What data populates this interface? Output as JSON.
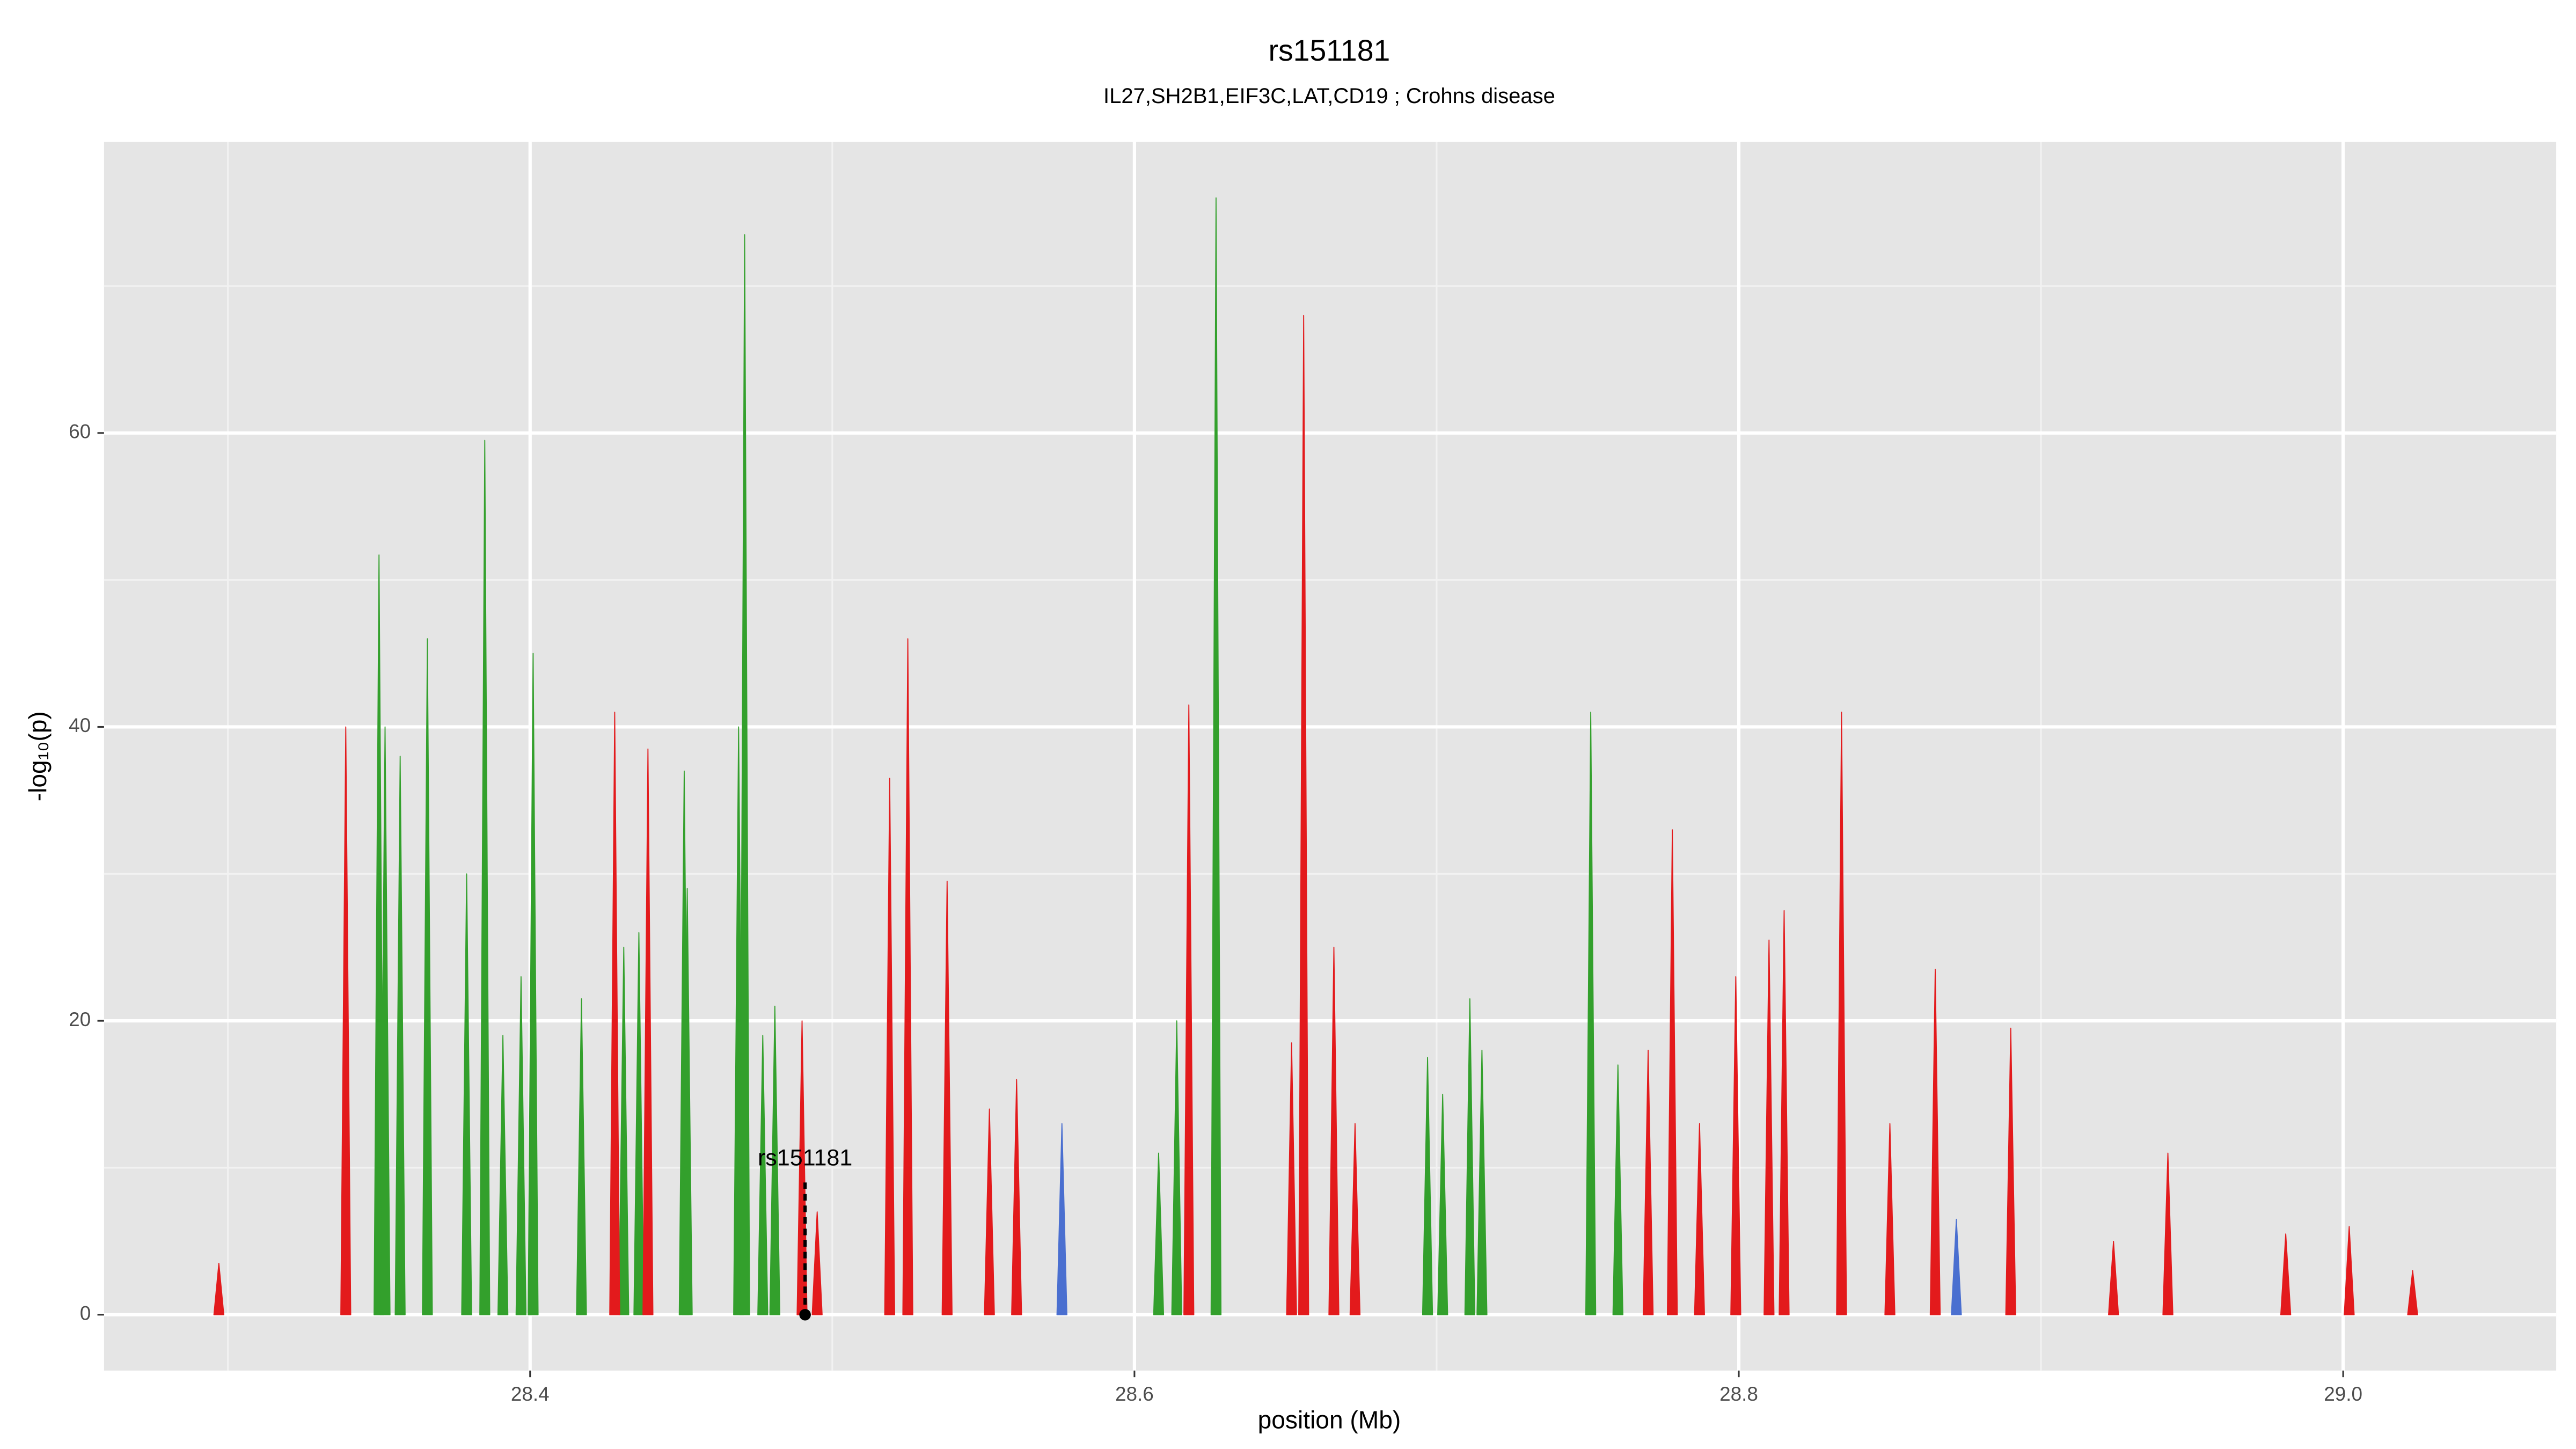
{
  "chart_data": {
    "type": "area",
    "title": "rs151181",
    "subtitle": "IL27,SH2B1,EIF3C,LAT,CD19 ; Crohns disease",
    "x_label": "position (Mb)",
    "y_label": "-log₁₀(p)",
    "xlim": [
      28.259,
      29.0705
    ],
    "ylim": [
      -3.8,
      79.8
    ],
    "xticks": [
      28.4,
      28.6,
      28.8,
      {
        "value": 29,
        "label": "29.0"
      }
    ],
    "xminor": [
      28.3,
      28.5,
      28.7,
      28.9
    ],
    "yticks": [
      0,
      20,
      40,
      60
    ],
    "yminor": [
      10,
      30,
      50,
      70
    ],
    "grid": true,
    "series": [
      {
        "color": "#33a02c",
        "x": [
          28.35,
          28.352,
          28.357,
          28.366,
          28.379,
          28.385,
          28.391,
          28.397,
          28.401,
          28.417,
          28.431,
          28.436,
          28.451,
          28.452,
          28.469,
          28.471,
          28.477,
          28.481,
          28.608,
          28.614,
          28.627,
          28.697,
          28.702,
          28.711,
          28.715,
          28.751,
          28.76
        ],
        "values": [
          51.7,
          40,
          38,
          46,
          30,
          59.5,
          19,
          23,
          45,
          21.5,
          25,
          26,
          37,
          29,
          40,
          73.5,
          19,
          21,
          11,
          20,
          76,
          17.5,
          15,
          21.5,
          18,
          41,
          17
        ]
      },
      {
        "color": "#e31a1c",
        "x": [
          28.297,
          28.339,
          28.428,
          28.439,
          28.49,
          28.495,
          28.519,
          28.525,
          28.538,
          28.552,
          28.561,
          28.618,
          28.652,
          28.656,
          28.666,
          28.673,
          28.77,
          28.778,
          28.787,
          28.799,
          28.81,
          28.815,
          28.834,
          28.85,
          28.865,
          28.89,
          28.924,
          28.942,
          28.981,
          29.002,
          29.023
        ],
        "values": [
          3.5,
          40,
          41,
          38.5,
          20,
          7,
          36.5,
          46,
          29.5,
          14,
          16,
          41.5,
          18.5,
          68,
          25,
          13,
          18,
          33,
          13,
          23,
          25.5,
          27.5,
          41,
          13,
          23.5,
          19.5,
          5,
          11,
          5.5,
          6,
          3
        ]
      },
      {
        "color": "#4a6fd0",
        "x": [
          28.576,
          28.872
        ],
        "values": [
          13,
          6.5
        ]
      }
    ],
    "annotation": {
      "text": "rs151181",
      "x": 28.491,
      "y": 9
    }
  }
}
